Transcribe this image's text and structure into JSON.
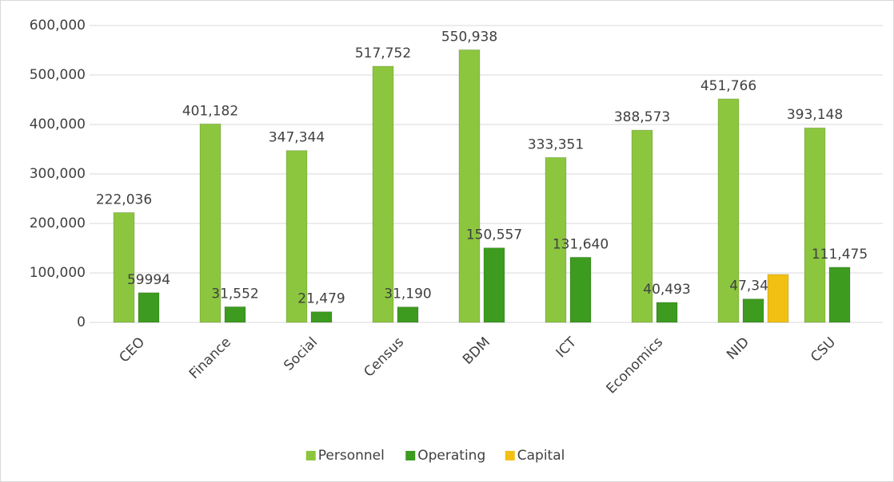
{
  "chart_data": {
    "type": "bar",
    "categories": [
      "CEO",
      "Finance",
      "Social",
      "Census",
      "BDM",
      "ICT",
      "Economics",
      "NID",
      "CSU"
    ],
    "series": [
      {
        "name": "Personnel",
        "color": "#8cc63f",
        "values": [
          222036,
          401182,
          347344,
          517752,
          550938,
          333351,
          388573,
          451766,
          393148
        ],
        "value_labels": [
          "222,036",
          "401,182",
          "347,344",
          "517,752",
          "550,938",
          "333,351",
          "388,573",
          "451,766",
          "393,148"
        ]
      },
      {
        "name": "Operating",
        "color": "#3d9b1f",
        "values": [
          59994,
          31552,
          21479,
          31190,
          150557,
          131640,
          40493,
          47340,
          111475
        ],
        "value_labels": [
          "59994",
          "31,552",
          "21,479",
          "31,190",
          "150,557",
          "131,640",
          "40,493",
          "47,340",
          "111,475"
        ]
      },
      {
        "name": "Capital",
        "color": "#f2c012",
        "values": [
          null,
          null,
          null,
          null,
          null,
          null,
          null,
          97000,
          null
        ]
      }
    ],
    "ylim": [
      0,
      600000
    ],
    "yticks": [
      0,
      {
        "value": 100000,
        "label": "100,000"
      },
      {
        "value": 200000,
        "label": "200,000"
      },
      {
        "value": 300000,
        "label": "300,000"
      },
      {
        "value": 400000,
        "label": "400,000"
      },
      {
        "value": 500000,
        "label": "500,000"
      },
      {
        "value": 600000,
        "label": "600,000"
      }
    ],
    "grid": true,
    "legend": "bottom"
  }
}
